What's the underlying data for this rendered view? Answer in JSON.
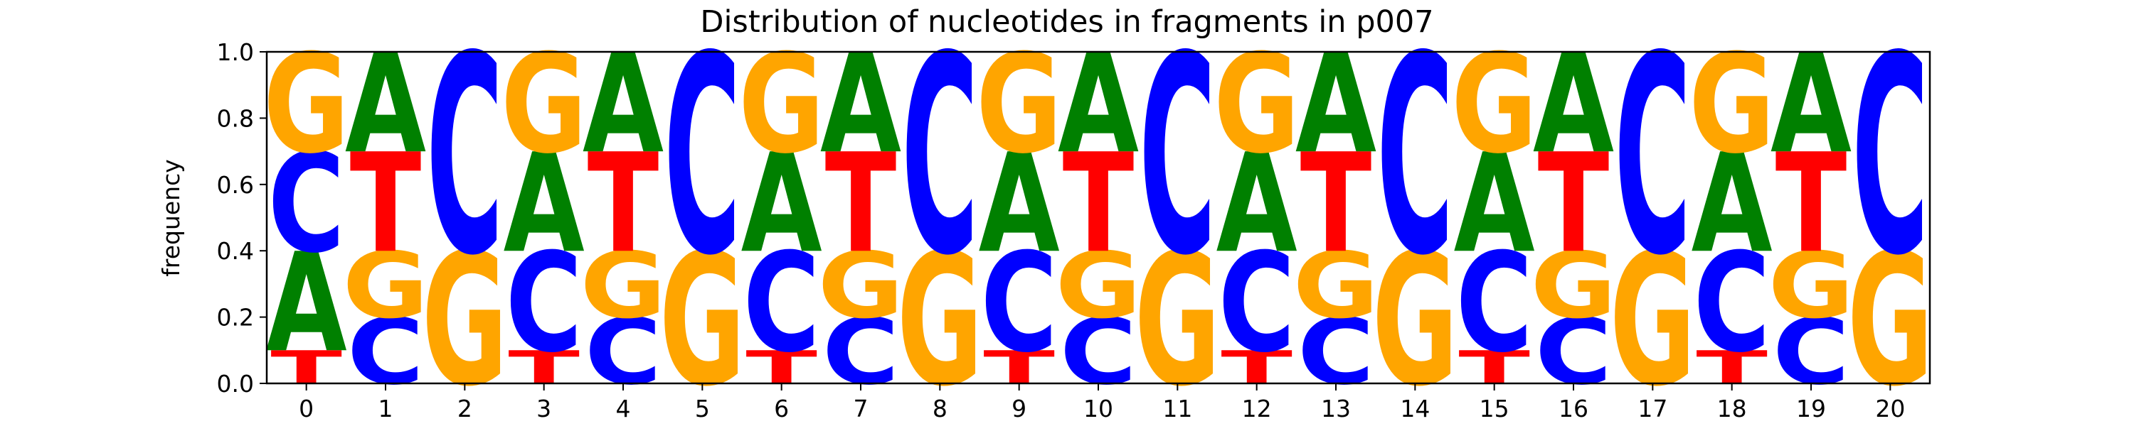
{
  "chart_data": {
    "type": "sequence-logo",
    "title": "Distribution of nucleotides in fragments in p007",
    "xlabel": "",
    "ylabel": "frequency",
    "ylim": [
      0,
      1
    ],
    "yticks": [
      "0.0",
      "0.2",
      "0.4",
      "0.6",
      "0.8",
      "1.0"
    ],
    "yticks_values": [
      0,
      0.2,
      0.4,
      0.6,
      0.8,
      1.0
    ],
    "positions": [
      "0",
      "1",
      "2",
      "3",
      "4",
      "5",
      "6",
      "7",
      "8",
      "9",
      "10",
      "11",
      "12",
      "13",
      "14",
      "15",
      "16",
      "17",
      "18",
      "19",
      "20"
    ],
    "letter_colors": {
      "A": "#008000",
      "C": "#0000ff",
      "G": "#ffa500",
      "T": "#ff0000"
    },
    "stacks": [
      [
        {
          "letter": "T",
          "value": 0.1
        },
        {
          "letter": "A",
          "value": 0.3
        },
        {
          "letter": "C",
          "value": 0.3
        },
        {
          "letter": "G",
          "value": 0.3
        }
      ],
      [
        {
          "letter": "C",
          "value": 0.2
        },
        {
          "letter": "G",
          "value": 0.2
        },
        {
          "letter": "T",
          "value": 0.3
        },
        {
          "letter": "A",
          "value": 0.3
        }
      ],
      [
        {
          "letter": "G",
          "value": 0.4
        },
        {
          "letter": "C",
          "value": 0.6
        }
      ],
      [
        {
          "letter": "T",
          "value": 0.1
        },
        {
          "letter": "C",
          "value": 0.3
        },
        {
          "letter": "A",
          "value": 0.3
        },
        {
          "letter": "G",
          "value": 0.3
        }
      ],
      [
        {
          "letter": "C",
          "value": 0.2
        },
        {
          "letter": "G",
          "value": 0.2
        },
        {
          "letter": "T",
          "value": 0.3
        },
        {
          "letter": "A",
          "value": 0.3
        }
      ],
      [
        {
          "letter": "G",
          "value": 0.4
        },
        {
          "letter": "C",
          "value": 0.6
        }
      ],
      [
        {
          "letter": "T",
          "value": 0.1
        },
        {
          "letter": "C",
          "value": 0.3
        },
        {
          "letter": "A",
          "value": 0.3
        },
        {
          "letter": "G",
          "value": 0.3
        }
      ],
      [
        {
          "letter": "C",
          "value": 0.2
        },
        {
          "letter": "G",
          "value": 0.2
        },
        {
          "letter": "T",
          "value": 0.3
        },
        {
          "letter": "A",
          "value": 0.3
        }
      ],
      [
        {
          "letter": "G",
          "value": 0.4
        },
        {
          "letter": "C",
          "value": 0.6
        }
      ],
      [
        {
          "letter": "T",
          "value": 0.1
        },
        {
          "letter": "C",
          "value": 0.3
        },
        {
          "letter": "A",
          "value": 0.3
        },
        {
          "letter": "G",
          "value": 0.3
        }
      ],
      [
        {
          "letter": "C",
          "value": 0.2
        },
        {
          "letter": "G",
          "value": 0.2
        },
        {
          "letter": "T",
          "value": 0.3
        },
        {
          "letter": "A",
          "value": 0.3
        }
      ],
      [
        {
          "letter": "G",
          "value": 0.4
        },
        {
          "letter": "C",
          "value": 0.6
        }
      ],
      [
        {
          "letter": "T",
          "value": 0.1
        },
        {
          "letter": "C",
          "value": 0.3
        },
        {
          "letter": "A",
          "value": 0.3
        },
        {
          "letter": "G",
          "value": 0.3
        }
      ],
      [
        {
          "letter": "C",
          "value": 0.2
        },
        {
          "letter": "G",
          "value": 0.2
        },
        {
          "letter": "T",
          "value": 0.3
        },
        {
          "letter": "A",
          "value": 0.3
        }
      ],
      [
        {
          "letter": "G",
          "value": 0.4
        },
        {
          "letter": "C",
          "value": 0.6
        }
      ],
      [
        {
          "letter": "T",
          "value": 0.1
        },
        {
          "letter": "C",
          "value": 0.3
        },
        {
          "letter": "A",
          "value": 0.3
        },
        {
          "letter": "G",
          "value": 0.3
        }
      ],
      [
        {
          "letter": "C",
          "value": 0.2
        },
        {
          "letter": "G",
          "value": 0.2
        },
        {
          "letter": "T",
          "value": 0.3
        },
        {
          "letter": "A",
          "value": 0.3
        }
      ],
      [
        {
          "letter": "G",
          "value": 0.4
        },
        {
          "letter": "C",
          "value": 0.6
        }
      ],
      [
        {
          "letter": "T",
          "value": 0.1
        },
        {
          "letter": "C",
          "value": 0.3
        },
        {
          "letter": "A",
          "value": 0.3
        },
        {
          "letter": "G",
          "value": 0.3
        }
      ],
      [
        {
          "letter": "C",
          "value": 0.2
        },
        {
          "letter": "G",
          "value": 0.2
        },
        {
          "letter": "T",
          "value": 0.3
        },
        {
          "letter": "A",
          "value": 0.3
        }
      ],
      [
        {
          "letter": "G",
          "value": 0.4
        },
        {
          "letter": "C",
          "value": 0.6
        }
      ]
    ],
    "grid": false,
    "legend": "none"
  }
}
